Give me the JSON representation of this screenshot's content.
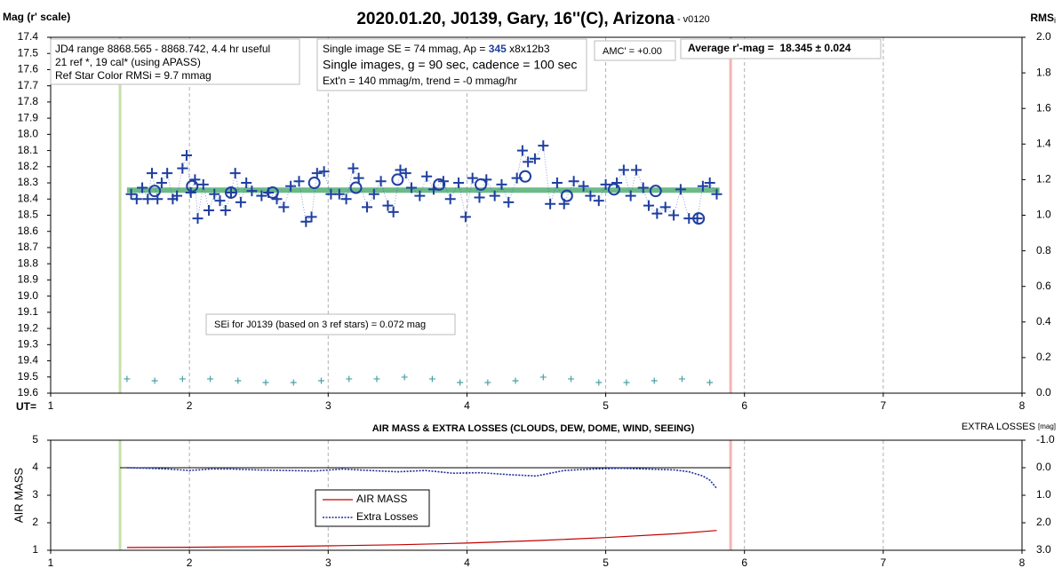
{
  "chart_data": [
    {
      "type": "scatter",
      "title": "2020.01.20, J0139, Gary, 16''(C), Arizona",
      "subtitle": " - v0120",
      "y_label": "Mag (r' scale)",
      "y2_label": "RMS",
      "y2_label_sub": "i",
      "x_label": "UT=",
      "xlim": [
        1,
        8
      ],
      "xticks": [
        1,
        2,
        3,
        4,
        5,
        6,
        7,
        8
      ],
      "ylim": [
        17.4,
        19.6
      ],
      "y_inverted": true,
      "yticks": [
        17.4,
        17.5,
        17.6,
        17.7,
        17.8,
        17.9,
        {
          "value": 18,
          "label": "18.0"
        },
        18.1,
        18.2,
        18.3,
        18.4,
        18.5,
        18.6,
        18.7,
        18.8,
        18.9,
        {
          "value": 19,
          "label": "19.0"
        },
        19.1,
        19.2,
        19.3,
        19.4,
        19.5,
        19.6
      ],
      "y2lim": [
        0,
        2
      ],
      "y2ticks": [
        {
          "value": 0,
          "label": "0.0"
        },
        0.2,
        0.4,
        0.6,
        0.8,
        {
          "value": 1,
          "label": "1.0"
        },
        1.2,
        1.4,
        1.6,
        1.8,
        {
          "value": 2,
          "label": "2.0"
        }
      ],
      "grid_x": true,
      "vlines": [
        {
          "x": 1.5,
          "color": "#c6e0a8"
        },
        {
          "x": 5.9,
          "color": "#f5b5b5"
        }
      ],
      "series": [
        {
          "marker": "line",
          "width": 6,
          "color": "#3aa360",
          "x": [
            1.55,
            5.82
          ],
          "values": [
            18.345,
            18.345
          ]
        },
        {
          "marker": "plus",
          "connect": true,
          "color": "#1f3fa0",
          "x": [
            1.58,
            1.62,
            1.66,
            1.7,
            1.73,
            1.77,
            1.8,
            1.84,
            1.88,
            1.91,
            1.95,
            1.98,
            2.01,
            2.04,
            2.06,
            2.1,
            2.14,
            2.18,
            2.22,
            2.26,
            2.3,
            2.33,
            2.37,
            2.41,
            2.45,
            2.52,
            2.57,
            2.63,
            2.68,
            2.73,
            2.79,
            2.84,
            2.88,
            2.92,
            2.97,
            3.02,
            3.08,
            3.13,
            3.18,
            3.22,
            3.28,
            3.33,
            3.38,
            3.43,
            3.47,
            3.52,
            3.56,
            3.6,
            3.66,
            3.71,
            3.76,
            3.83,
            3.88,
            3.94,
            3.99,
            4.04,
            4.09,
            4.14,
            4.2,
            4.25,
            4.3,
            4.36,
            4.4,
            4.44,
            4.49,
            4.55,
            4.6,
            4.65,
            4.7,
            4.77,
            4.84,
            4.89,
            4.95,
            5.0,
            5.08,
            5.13,
            5.18,
            5.22,
            5.27,
            5.31,
            5.37,
            5.43,
            5.49,
            5.54,
            5.6,
            5.66,
            5.7,
            5.75,
            5.8
          ],
          "values": [
            18.37,
            18.4,
            18.33,
            18.4,
            18.24,
            18.4,
            18.3,
            18.24,
            18.4,
            18.38,
            18.21,
            18.13,
            18.36,
            18.28,
            18.52,
            18.31,
            18.47,
            18.37,
            18.41,
            18.47,
            18.36,
            18.24,
            18.42,
            18.3,
            18.35,
            18.38,
            18.36,
            18.4,
            18.45,
            18.32,
            18.29,
            18.54,
            18.51,
            18.24,
            18.23,
            18.37,
            18.37,
            18.4,
            18.21,
            18.27,
            18.45,
            18.37,
            18.29,
            18.44,
            18.48,
            18.22,
            18.24,
            18.33,
            18.38,
            18.26,
            18.34,
            18.29,
            18.4,
            18.3,
            18.51,
            18.27,
            18.39,
            18.28,
            18.38,
            18.31,
            18.42,
            18.27,
            18.1,
            18.17,
            18.15,
            18.07,
            18.43,
            18.3,
            18.43,
            18.29,
            18.32,
            18.38,
            18.41,
            18.31,
            18.3,
            18.22,
            18.38,
            18.22,
            18.33,
            18.44,
            18.49,
            18.45,
            18.5,
            18.34,
            18.52,
            18.52,
            18.32,
            18.3,
            18.37
          ]
        },
        {
          "marker": "circle",
          "color": "#1f3fa0",
          "x": [
            1.75,
            2.02,
            2.3,
            2.6,
            2.9,
            3.2,
            3.5,
            3.8,
            4.1,
            4.42,
            4.72,
            5.06,
            5.36,
            5.67
          ],
          "values": [
            18.35,
            18.32,
            18.36,
            18.36,
            18.3,
            18.33,
            18.28,
            18.31,
            18.31,
            18.26,
            18.38,
            18.34,
            18.35,
            18.52
          ]
        },
        {
          "marker": "plus",
          "small": true,
          "axis": "y2",
          "color": "#4aa0a8",
          "x": [
            1.55,
            1.75,
            1.95,
            2.15,
            2.35,
            2.55,
            2.75,
            2.95,
            3.15,
            3.35,
            3.55,
            3.75,
            3.95,
            4.15,
            4.35,
            4.55,
            4.75,
            4.95,
            5.15,
            5.35,
            5.55,
            5.75
          ],
          "values": [
            0.08,
            0.07,
            0.08,
            0.08,
            0.07,
            0.06,
            0.06,
            0.07,
            0.08,
            0.08,
            0.09,
            0.08,
            0.06,
            0.06,
            0.07,
            0.09,
            0.08,
            0.06,
            0.06,
            0.07,
            0.08,
            0.06
          ]
        }
      ],
      "annotations": {
        "info": [
          "JD4 range 8868.565 - 8868.742, 4.4 hr useful",
          "21 ref *, 19 cal* (using APASS)",
          "Ref Star Color RMSi = 9.7 mmag"
        ],
        "image_se": [
          "Single image SE = 74 mmag, Ap = ",
          "345",
          " x8x12b3"
        ],
        "image_info": [
          "Single images, g = 90 sec, cadence = 100 sec",
          "Ext'n = 140 mmag/m, trend = -0 mmag/hr"
        ],
        "amc": "AMC' = +0.00",
        "average": "Average r'-mag =  18.345 ± 0.024",
        "sei": "SEi for J0139 (based on 3 ref stars) = 0.072 mag"
      }
    },
    {
      "type": "line",
      "title": "AIR MASS & EXTRA LOSSES (CLOUDS, DEW, DOME, WIND, SEEING)",
      "y_label": "AIR MASS",
      "y2_label": "EXTRA LOSSES",
      "y2_label_sub": "[mag]",
      "xlim": [
        1,
        8
      ],
      "xticks": [
        1,
        2,
        3,
        4,
        5,
        6,
        7,
        8
      ],
      "ylim": [
        1,
        5
      ],
      "yticks": [
        1,
        2,
        3,
        4,
        5
      ],
      "y2lim": [
        -1,
        3
      ],
      "y2_inverted": true,
      "y2ticks": [
        {
          "value": -1,
          "label": "-1.0"
        },
        {
          "value": 0,
          "label": "0.0"
        },
        {
          "value": 1,
          "label": "1.0"
        },
        {
          "value": 2,
          "label": "2.0"
        },
        {
          "value": 3,
          "label": "3.0"
        }
      ],
      "grid_x": true,
      "vlines": [
        {
          "x": 1.5,
          "color": "#c6e0a8"
        },
        {
          "x": 5.9,
          "color": "#f5b5b5"
        }
      ],
      "hlines": [
        {
          "axis": "y2",
          "value": 0,
          "x": [
            1.5,
            5.9
          ],
          "color": "#000000"
        }
      ],
      "legend": true,
      "series": [
        {
          "name": "AIR MASS",
          "marker": "line",
          "width": 1.2,
          "color": "#c00000",
          "x": [
            1.55,
            2.0,
            2.5,
            3.0,
            3.5,
            4.0,
            4.5,
            5.0,
            5.5,
            5.8
          ],
          "values": [
            1.1,
            1.11,
            1.13,
            1.16,
            1.2,
            1.26,
            1.35,
            1.46,
            1.6,
            1.72
          ]
        },
        {
          "name": "Extra Losses",
          "marker": "line",
          "dotted": true,
          "width": 1.6,
          "axis": "y2",
          "color": "#1f2f9f",
          "x": [
            1.55,
            1.7,
            1.85,
            2.0,
            2.15,
            2.3,
            2.5,
            2.7,
            2.9,
            3.1,
            3.3,
            3.5,
            3.7,
            3.9,
            4.1,
            4.3,
            4.5,
            4.7,
            4.9,
            5.1,
            5.3,
            5.5,
            5.6,
            5.7,
            5.75,
            5.8
          ],
          "values": [
            0.0,
            0.02,
            0.05,
            0.1,
            0.05,
            0.05,
            0.08,
            0.1,
            0.12,
            0.05,
            0.1,
            0.15,
            0.1,
            0.2,
            0.18,
            0.25,
            0.3,
            0.1,
            0.05,
            0.02,
            0.05,
            0.08,
            0.15,
            0.3,
            0.45,
            0.75
          ]
        }
      ]
    }
  ]
}
